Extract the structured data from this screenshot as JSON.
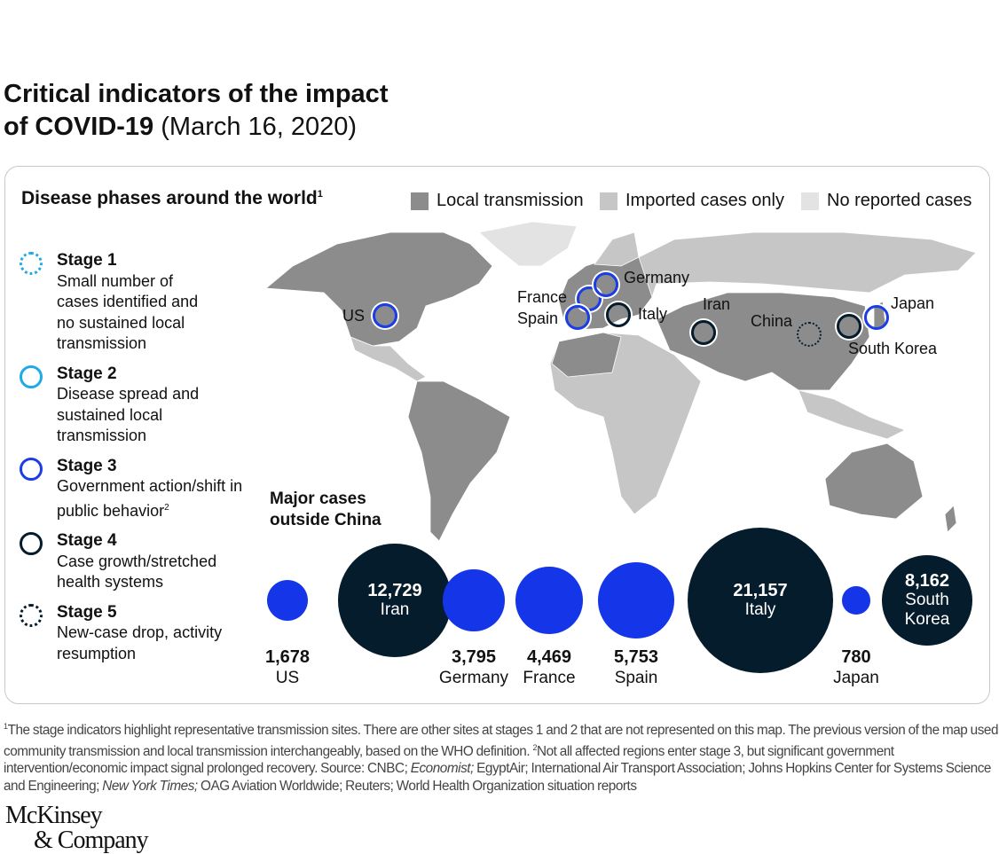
{
  "title": {
    "bold_line1": "Critical indicators of the impact",
    "bold_line2": "of COVID-19",
    "date": "(March 16, 2020)"
  },
  "map": {
    "subtitle": "Disease phases around the world",
    "subtitle_sup": "1",
    "legend": [
      {
        "label": "Local transmission",
        "color": "#8c8c8c"
      },
      {
        "label": "Imported cases only",
        "color": "#c6c6c6"
      },
      {
        "label": "No reported cases",
        "color": "#e3e3e3"
      }
    ],
    "markers": [
      {
        "country": "US",
        "stage": 3
      },
      {
        "country": "France",
        "stage": 3
      },
      {
        "country": "Germany",
        "stage": 3
      },
      {
        "country": "Spain",
        "stage": 3
      },
      {
        "country": "Italy",
        "stage": 4
      },
      {
        "country": "Iran",
        "stage": 4
      },
      {
        "country": "China",
        "stage": 5
      },
      {
        "country": "South Korea",
        "stage": 4
      },
      {
        "country": "Japan",
        "stage": 3
      }
    ]
  },
  "stages": [
    {
      "name": "Stage 1",
      "desc": "Small number of cases identified and no sustained local transmission",
      "style": "dotted",
      "color": "#1fa9e6"
    },
    {
      "name": "Stage 2",
      "desc": "Disease spread and sustained local transmission",
      "style": "solid",
      "color": "#1fa9e6"
    },
    {
      "name": "Stage 3",
      "desc": "Government action/shift in public behavior",
      "sup": "2",
      "style": "solid",
      "color": "#1b3de6"
    },
    {
      "name": "Stage 4",
      "desc": "Case growth/stretched health systems",
      "style": "solid",
      "color": "#051c2c"
    },
    {
      "name": "Stage 5",
      "desc": "New-case drop, activity resumption",
      "style": "dotted",
      "color": "#051c2c"
    }
  ],
  "cases": {
    "heading": "Major cases outside China",
    "items": [
      {
        "country": "US",
        "value": "1,678",
        "stage": 3
      },
      {
        "country": "Iran",
        "value": "12,729",
        "stage": 4
      },
      {
        "country": "Germany",
        "value": "3,795",
        "stage": 3
      },
      {
        "country": "France",
        "value": "4,469",
        "stage": 3
      },
      {
        "country": "Spain",
        "value": "5,753",
        "stage": 3
      },
      {
        "country": "Italy",
        "value": "21,157",
        "stage": 4
      },
      {
        "country": "Japan",
        "value": "780",
        "stage": 3
      },
      {
        "country": "South Korea",
        "value": "8,162",
        "stage": 4
      }
    ]
  },
  "footnote": {
    "sup1": "1",
    "text1": "The stage indicators highlight representative transmission sites. There are other sites at stages 1 and 2 that are not represented on this map. The previous version of the map used community transmission and local transmission interchangeably, based on the WHO definition. ",
    "sup2": "2",
    "text2": "Not all affected regions enter stage 3, but significant government intervention/economic impact signal prolonged recovery. Source: CNBC; ",
    "i1": "Economist;",
    "text3": " EgyptAir; International Air Transport Association; Johns Hopkins Center for Systems Science and Engineering; ",
    "i2": "New York Times;",
    "text4": " OAG Aviation Worldwide; Reuters; World Health Organization situation reports"
  },
  "logo": {
    "line1": "McKinsey",
    "line2": "& Company"
  }
}
